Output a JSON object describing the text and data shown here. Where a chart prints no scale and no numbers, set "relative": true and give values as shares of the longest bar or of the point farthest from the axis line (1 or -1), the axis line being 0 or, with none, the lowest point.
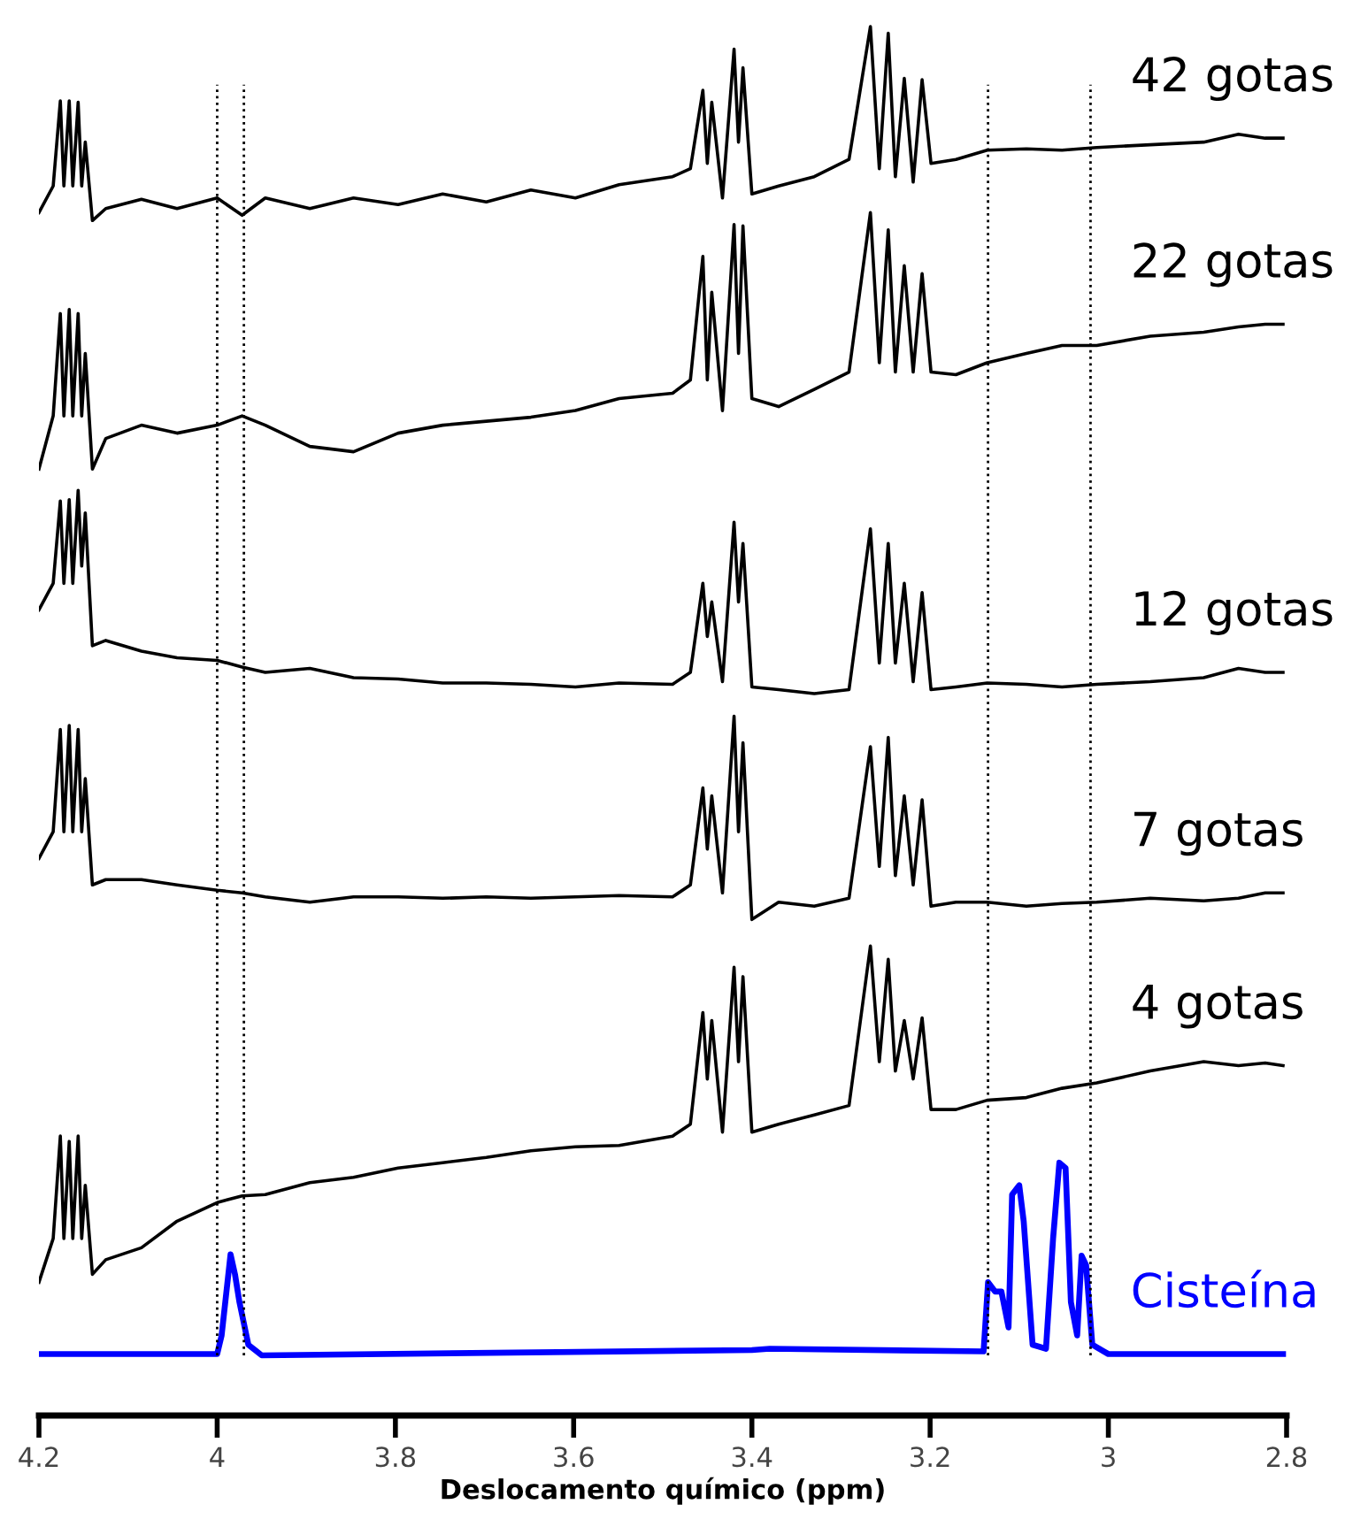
{
  "chart_data": {
    "type": "line",
    "relative": true,
    "xlabel": "Deslocamento químico (ppm)",
    "xlim": [
      4.2,
      2.8
    ],
    "xticks": [
      4.2,
      4,
      3.8,
      3.6,
      3.4,
      3.2,
      3,
      2.8
    ],
    "grid": false,
    "legend": false,
    "tick_labels": "x",
    "ref_lines": [
      {
        "axis": "x",
        "value": 4.0,
        "color": "#000000",
        "line_style": "dotted"
      },
      {
        "axis": "x",
        "value": 3.97,
        "color": "#000000",
        "line_style": "dotted"
      },
      {
        "axis": "x",
        "value": 3.135,
        "color": "#000000",
        "line_style": "dotted"
      },
      {
        "axis": "x",
        "value": 3.02,
        "color": "#000000",
        "line_style": "dotted"
      }
    ],
    "x": [
      4.2,
      4.184,
      4.176,
      4.172,
      4.166,
      4.162,
      4.156,
      4.152,
      4.148,
      4.14,
      4.125,
      4.085,
      4.045,
      4.0,
      3.972,
      3.946,
      3.896,
      3.847,
      3.797,
      3.747,
      3.698,
      3.648,
      3.598,
      3.549,
      3.489,
      3.469,
      3.455,
      3.45,
      3.445,
      3.433,
      3.42,
      3.415,
      3.41,
      3.4,
      3.37,
      3.33,
      3.291,
      3.267,
      3.257,
      3.247,
      3.239,
      3.229,
      3.219,
      3.209,
      3.199,
      3.171,
      3.136,
      3.092,
      3.052,
      3.013,
      2.953,
      2.893,
      2.854,
      2.824,
      2.804
    ],
    "series": [
      {
        "name": "42 gotas",
        "color": "#000000",
        "values": [
          0.86,
          0.88,
          0.944,
          0.88,
          0.944,
          0.88,
          0.943,
          0.88,
          0.913,
          0.854,
          0.863,
          0.87,
          0.863,
          0.871,
          0.858,
          0.871,
          0.863,
          0.871,
          0.866,
          0.874,
          0.868,
          0.877,
          0.871,
          0.881,
          0.887,
          0.893,
          0.952,
          0.897,
          0.943,
          0.871,
          0.983,
          0.913,
          0.969,
          0.874,
          0.88,
          0.887,
          0.9,
          1.0,
          0.893,
          0.995,
          0.887,
          0.961,
          0.883,
          0.96,
          0.897,
          0.9,
          0.907,
          0.908,
          0.907,
          0.909,
          0.911,
          0.913,
          0.919,
          0.916,
          0.916
        ]
      },
      {
        "name": "22 gotas",
        "color": "#000000",
        "values": [
          0.667,
          0.707,
          0.784,
          0.707,
          0.787,
          0.707,
          0.784,
          0.707,
          0.754,
          0.667,
          0.69,
          0.7,
          0.694,
          0.7,
          0.707,
          0.7,
          0.684,
          0.68,
          0.694,
          0.7,
          0.703,
          0.706,
          0.711,
          0.72,
          0.724,
          0.734,
          0.827,
          0.734,
          0.8,
          0.711,
          0.851,
          0.754,
          0.85,
          0.72,
          0.714,
          0.727,
          0.74,
          0.86,
          0.747,
          0.847,
          0.74,
          0.82,
          0.74,
          0.814,
          0.74,
          0.738,
          0.747,
          0.754,
          0.76,
          0.76,
          0.767,
          0.77,
          0.774,
          0.776,
          0.776
        ]
      },
      {
        "name": "12 gotas",
        "color": "#000000",
        "values": [
          0.561,
          0.581,
          0.643,
          0.581,
          0.644,
          0.581,
          0.651,
          0.594,
          0.634,
          0.534,
          0.538,
          0.53,
          0.525,
          0.523,
          0.518,
          0.514,
          0.517,
          0.51,
          0.509,
          0.506,
          0.506,
          0.505,
          0.503,
          0.506,
          0.505,
          0.514,
          0.581,
          0.541,
          0.567,
          0.507,
          0.627,
          0.567,
          0.611,
          0.503,
          0.501,
          0.498,
          0.501,
          0.622,
          0.521,
          0.611,
          0.521,
          0.581,
          0.507,
          0.574,
          0.501,
          0.503,
          0.506,
          0.505,
          0.503,
          0.505,
          0.507,
          0.51,
          0.517,
          0.514,
          0.514
        ]
      },
      {
        "name": "7 gotas",
        "color": "#000000",
        "values": [
          0.374,
          0.394,
          0.471,
          0.394,
          0.474,
          0.394,
          0.471,
          0.394,
          0.434,
          0.354,
          0.358,
          0.358,
          0.354,
          0.35,
          0.348,
          0.345,
          0.341,
          0.345,
          0.345,
          0.344,
          0.345,
          0.344,
          0.345,
          0.346,
          0.345,
          0.354,
          0.427,
          0.381,
          0.421,
          0.348,
          0.481,
          0.394,
          0.461,
          0.328,
          0.341,
          0.338,
          0.344,
          0.458,
          0.368,
          0.465,
          0.361,
          0.421,
          0.354,
          0.418,
          0.338,
          0.341,
          0.341,
          0.338,
          0.34,
          0.341,
          0.344,
          0.342,
          0.344,
          0.348,
          0.348
        ]
      },
      {
        "name": "4 gotas",
        "color": "#000000",
        "values": [
          0.055,
          0.088,
          0.165,
          0.088,
          0.161,
          0.088,
          0.165,
          0.088,
          0.128,
          0.061,
          0.072,
          0.081,
          0.101,
          0.115,
          0.12,
          0.121,
          0.13,
          0.134,
          0.141,
          0.145,
          0.149,
          0.154,
          0.157,
          0.158,
          0.165,
          0.174,
          0.258,
          0.208,
          0.252,
          0.168,
          0.292,
          0.221,
          0.285,
          0.168,
          0.174,
          0.181,
          0.188,
          0.308,
          0.221,
          0.298,
          0.214,
          0.252,
          0.208,
          0.254,
          0.185,
          0.185,
          0.192,
          0.194,
          0.201,
          0.205,
          0.214,
          0.221,
          0.218,
          0.22,
          0.218
        ]
      },
      {
        "name": "Cisteína",
        "color": "#0000ff",
        "x": [
          4.2,
          4.0,
          3.995,
          3.985,
          3.98,
          3.975,
          3.965,
          3.95,
          3.4,
          3.38,
          3.14,
          3.135,
          3.127,
          3.12,
          3.112,
          3.108,
          3.1,
          3.095,
          3.085,
          3.07,
          3.062,
          3.055,
          3.048,
          3.042,
          3.035,
          3.03,
          3.025,
          3.018,
          3.0,
          2.804
        ],
        "values": [
          0.001,
          0.001,
          0.015,
          0.076,
          0.061,
          0.04,
          0.008,
          0.0,
          0.004,
          0.005,
          0.003,
          0.055,
          0.048,
          0.048,
          0.021,
          0.121,
          0.128,
          0.101,
          0.008,
          0.005,
          0.088,
          0.145,
          0.141,
          0.04,
          0.015,
          0.075,
          0.068,
          0.008,
          0.001,
          0.001
        ]
      }
    ]
  }
}
